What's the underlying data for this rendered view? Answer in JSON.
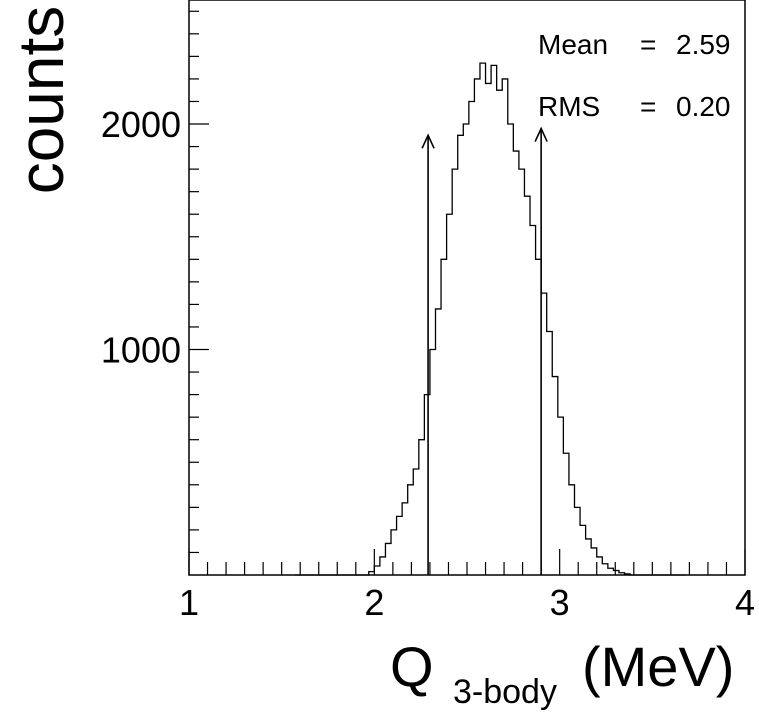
{
  "chart_data": {
    "type": "histogram",
    "xlabel_main": "Q",
    "xlabel_sub": "3-body",
    "xlabel_unit": "(MeV)",
    "ylabel": "counts",
    "xlim": [
      1,
      4
    ],
    "ylim": [
      0,
      2550
    ],
    "x_ticks": [
      "1",
      "2",
      "3",
      "4"
    ],
    "x_tick_values": [
      1,
      2,
      3,
      4
    ],
    "y_ticks": [
      "1000",
      "2000"
    ],
    "y_tick_values": [
      1000,
      2000
    ],
    "stats": [
      {
        "label": "Mean",
        "eq": "=",
        "value": "2.59"
      },
      {
        "label": "RMS",
        "eq": "=",
        "value": "0.20"
      }
    ],
    "arrows": [
      {
        "x": 2.29,
        "y_from": 0,
        "y_to": 1950
      },
      {
        "x": 2.9,
        "y_from": 0,
        "y_to": 1980
      }
    ],
    "bin_width": 0.03,
    "bin_start": 1.97,
    "values": [
      15,
      40,
      80,
      140,
      200,
      260,
      320,
      400,
      470,
      600,
      800,
      1000,
      1180,
      1400,
      1600,
      1800,
      1950,
      2000,
      2100,
      2200,
      2270,
      2180,
      2260,
      2150,
      2200,
      2000,
      1880,
      1800,
      1680,
      1550,
      1400,
      1250,
      1080,
      880,
      700,
      540,
      400,
      300,
      220,
      160,
      120,
      80,
      50,
      30,
      20,
      10,
      5
    ]
  }
}
